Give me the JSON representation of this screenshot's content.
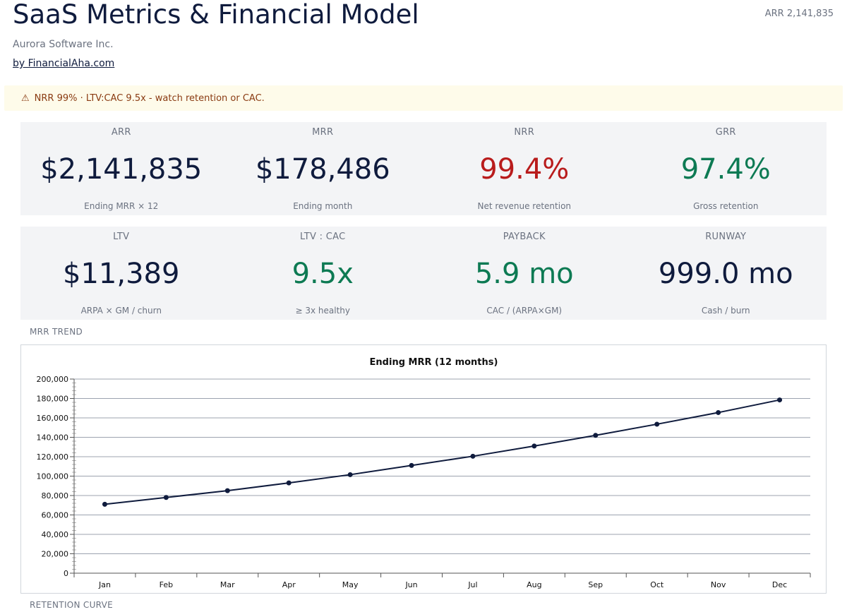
{
  "header": {
    "title": "SaaS Metrics & Financial Model",
    "company": "Aurora Software Inc.",
    "byline": "by FinancialAha.com",
    "arr_summary": "ARR 2,141,835"
  },
  "alert": {
    "icon": "warning-icon",
    "text": "NRR 99% · LTV:CAC 9.5x - watch retention or CAC."
  },
  "kpis_row1": [
    {
      "label": "ARR",
      "value": "$2,141,835",
      "sub": "Ending MRR × 12"
    },
    {
      "label": "MRR",
      "value": "$178,486",
      "sub": "Ending month"
    },
    {
      "label": "NRR",
      "value": "99.4%",
      "sub": "Net revenue retention"
    },
    {
      "label": "GRR",
      "value": "97.4%",
      "sub": "Gross retention"
    }
  ],
  "kpis_row2": [
    {
      "label": "LTV",
      "value": "$11,389",
      "sub": "ARPA × GM / churn"
    },
    {
      "label": "LTV : CAC",
      "value": "9.5x",
      "sub": "≥ 3x healthy"
    },
    {
      "label": "PAYBACK",
      "value": "5.9 mo",
      "sub": "CAC / (ARPA×GM)"
    },
    {
      "label": "RUNWAY",
      "value": "999.0 mo",
      "sub": "Cash / burn"
    }
  ],
  "colors": {
    "navy": "#0f1b3d",
    "good": "#0d7a53",
    "bad": "#b91c1c",
    "muted": "#6b7280",
    "alert_bg": "#fefbea",
    "alert_text": "#8a3b12"
  },
  "sections": {
    "mrr_trend": "MRR TREND",
    "retention_curve": "RETENTION CURVE"
  },
  "chart_data": {
    "type": "line",
    "title": "Ending MRR (12 months)",
    "xlabel": "",
    "ylabel": "",
    "categories": [
      "Jan",
      "Feb",
      "Mar",
      "Apr",
      "May",
      "Jun",
      "Jul",
      "Aug",
      "Sep",
      "Oct",
      "Nov",
      "Dec"
    ],
    "values": [
      71000,
      78000,
      85000,
      93000,
      101500,
      111000,
      120500,
      131000,
      142000,
      153500,
      165500,
      178486
    ],
    "ylim": [
      0,
      200000
    ],
    "yticks": [
      0,
      20000,
      40000,
      60000,
      80000,
      100000,
      120000,
      140000,
      160000,
      180000,
      200000
    ],
    "ytick_labels": [
      "0",
      "20,000",
      "40,000",
      "60,000",
      "80,000",
      "100,000",
      "120,000",
      "140,000",
      "160,000",
      "180,000",
      "200,000"
    ],
    "grid": true,
    "legend": "none"
  }
}
